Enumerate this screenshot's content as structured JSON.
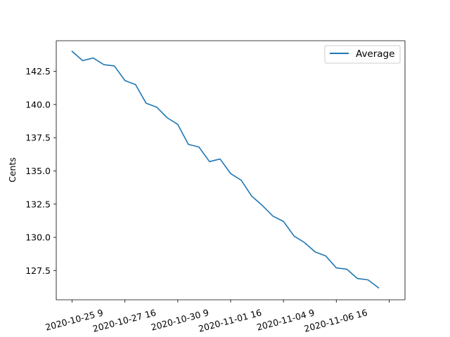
{
  "chart_data": {
    "type": "line",
    "title": "",
    "xlabel": "",
    "ylabel": "Cents",
    "x_tick_labels": [
      "2020-10-25 9",
      "2020-10-27 16",
      "2020-10-30 9",
      "2020-11-01 16",
      "2020-11-04 9",
      "2020-11-06 16",
      ""
    ],
    "x_tick_index": [
      0,
      5,
      10,
      15,
      20,
      25,
      30
    ],
    "y_ticks": [
      127.5,
      130.0,
      132.5,
      135.0,
      137.5,
      140.0,
      142.5
    ],
    "y_tick_labels": [
      "127.5",
      "130.0",
      "132.5",
      "135.0",
      "137.5",
      "140.0",
      "142.5"
    ],
    "ylim": [
      125.3,
      144.8
    ],
    "xlim": [
      -1.5,
      31.5
    ],
    "grid": false,
    "legend_position": "top-right",
    "series": [
      {
        "name": "Average",
        "color": "#1f77b4",
        "values": [
          144.0,
          143.3,
          143.5,
          143.0,
          142.9,
          141.8,
          141.5,
          140.1,
          139.8,
          139.0,
          138.5,
          137.0,
          136.8,
          135.7,
          135.9,
          134.8,
          134.3,
          133.1,
          132.4,
          131.6,
          131.2,
          130.1,
          129.6,
          128.9,
          128.6,
          127.7,
          127.6,
          126.9,
          126.8,
          126.2
        ]
      }
    ]
  }
}
